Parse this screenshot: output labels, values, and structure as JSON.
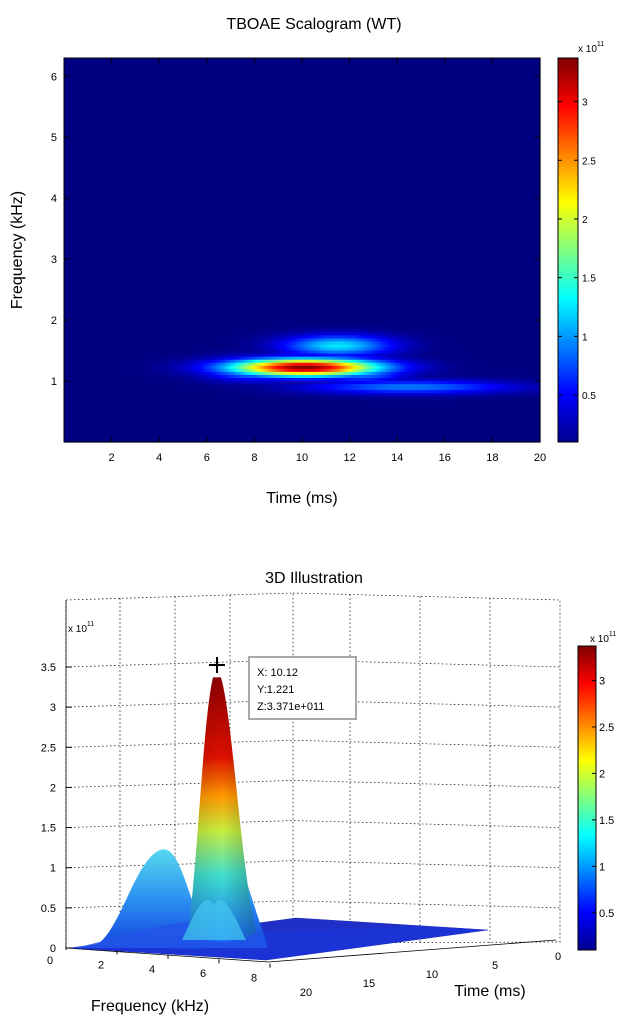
{
  "chart_data": [
    {
      "type": "heatmap",
      "title": "TBOAE Scalogram (WT)",
      "xlabel": "Time (ms)",
      "ylabel": "Frequency (kHz)",
      "xlim": [
        0,
        20
      ],
      "ylim": [
        0,
        6.3
      ],
      "x_ticks": [
        "2",
        "4",
        "6",
        "8",
        "10",
        "12",
        "14",
        "16",
        "18",
        "20"
      ],
      "y_ticks": [
        "1",
        "2",
        "3",
        "4",
        "5",
        "6"
      ],
      "colorbar": {
        "multiplier_base": "x 10",
        "multiplier_exp": "11",
        "range": [
          0.1,
          3.371
        ],
        "ticks": [
          "0.5",
          "1",
          "1.5",
          "2",
          "2.5",
          "3"
        ],
        "colormap": "jet"
      },
      "blobs": [
        {
          "t": 10.12,
          "f": 1.221,
          "peak": 3.371,
          "sigma_t": 2.2,
          "sigma_f": 0.1
        },
        {
          "t": 8.0,
          "f": 1.2,
          "peak": 1.3,
          "sigma_t": 1.4,
          "sigma_f": 0.12
        },
        {
          "t": 11.5,
          "f": 1.58,
          "peak": 1.25,
          "sigma_t": 1.6,
          "sigma_f": 0.12
        },
        {
          "t": 14.5,
          "f": 0.9,
          "peak": 0.9,
          "sigma_t": 3.0,
          "sigma_f": 0.08
        },
        {
          "t": 12.5,
          "f": 1.15,
          "peak": 1.0,
          "sigma_t": 1.3,
          "sigma_f": 0.12
        }
      ],
      "grid": false
    },
    {
      "type": "surface",
      "title": "3D Illustration",
      "xlabel": "Frequency (kHz)",
      "ylabel": "Time (ms)",
      "z_multiplier_base": "x 10",
      "z_multiplier_exp": "11",
      "x_ticks": [
        "0",
        "2",
        "4",
        "6",
        "8"
      ],
      "y_ticks": [
        "0",
        "5",
        "10",
        "15",
        "20"
      ],
      "z_ticks": [
        "0",
        "0.5",
        "1",
        "1.5",
        "2",
        "2.5",
        "3",
        "3.5"
      ],
      "zlim": [
        0,
        3.5
      ],
      "peak": {
        "x": 10.12,
        "y": 1.221,
        "z": 3.371
      },
      "datatip": [
        "X: 10.12",
        "Y:1.221",
        "Z:3.371e+011"
      ],
      "colorbar": {
        "multiplier_base": "x 10",
        "multiplier_exp": "11",
        "range": [
          0.1,
          3.371
        ],
        "ticks": [
          "0.5",
          "1",
          "1.5",
          "2",
          "2.5",
          "3"
        ],
        "colormap": "jet"
      },
      "grid": true
    }
  ]
}
